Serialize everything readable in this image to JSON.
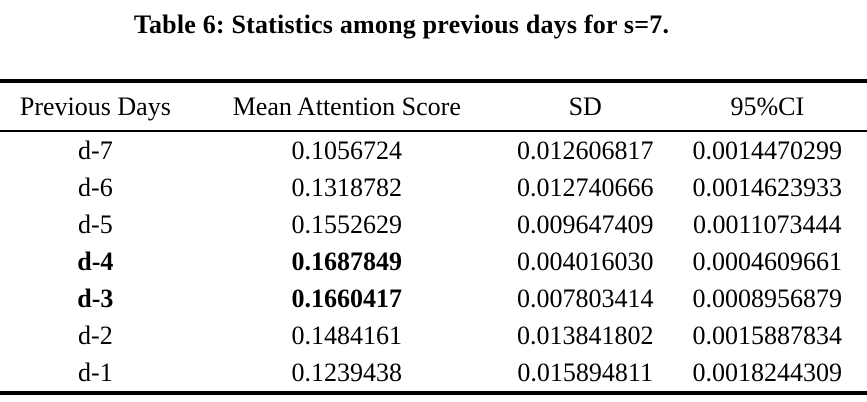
{
  "caption": "Table 6: Statistics among previous days for s=7.",
  "table": {
    "columns": [
      "Previous Days",
      "Mean Attention Score",
      "SD",
      "95%CI"
    ],
    "rows": [
      {
        "day": "d-7",
        "mean": "0.1056724",
        "sd": "0.012606817",
        "ci": "0.0014470299",
        "bold": false
      },
      {
        "day": "d-6",
        "mean": "0.1318782",
        "sd": "0.012740666",
        "ci": "0.0014623933",
        "bold": false
      },
      {
        "day": "d-5",
        "mean": "0.1552629",
        "sd": "0.009647409",
        "ci": "0.0011073444",
        "bold": false
      },
      {
        "day": "d-4",
        "mean": "0.1687849",
        "sd": "0.004016030",
        "ci": "0.0004609661",
        "bold": true
      },
      {
        "day": "d-3",
        "mean": "0.1660417",
        "sd": "0.007803414",
        "ci": "0.0008956879",
        "bold": true
      },
      {
        "day": "d-2",
        "mean": "0.1484161",
        "sd": "0.013841802",
        "ci": "0.0015887834",
        "bold": false
      },
      {
        "day": "d-1",
        "mean": "0.1239438",
        "sd": "0.015894811",
        "ci": "0.0018244309",
        "bold": false
      }
    ]
  },
  "colors": {
    "text": "#000000",
    "rule": "#000000",
    "background": "#ffffff"
  }
}
